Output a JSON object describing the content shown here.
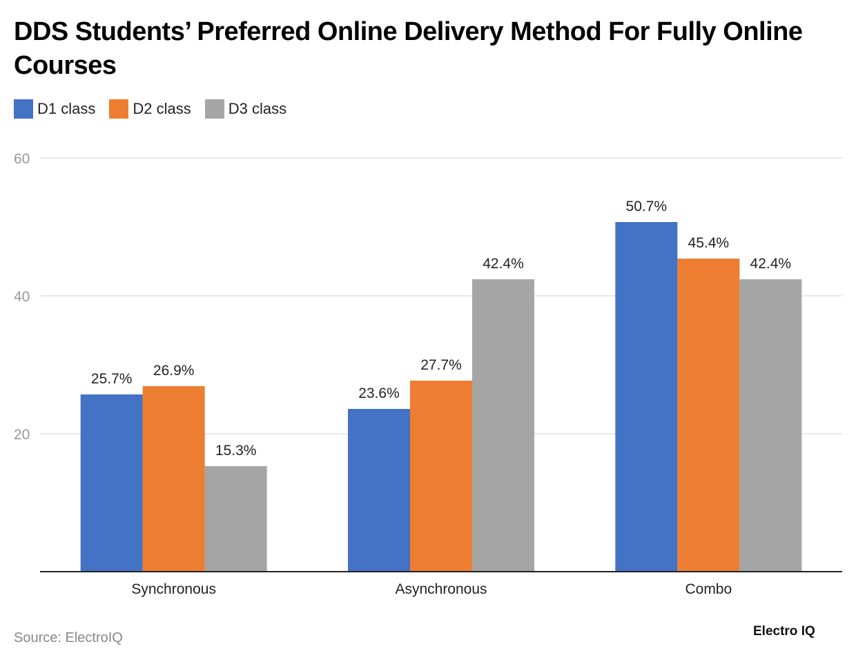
{
  "chart_data": {
    "type": "bar",
    "title": "DDS Students’ Preferred Online Delivery Method For Fully Online Courses",
    "categories": [
      "Synchronous",
      "Asynchronous",
      "Combo"
    ],
    "series": [
      {
        "name": "D1 class",
        "color": "#4472c4",
        "values": [
          25.7,
          23.6,
          50.7
        ],
        "labels": [
          "25.7%",
          "23.6%",
          "50.7%"
        ]
      },
      {
        "name": "D2 class",
        "color": "#ed7d31",
        "values": [
          26.9,
          27.7,
          45.4
        ],
        "labels": [
          "26.9%",
          "27.7%",
          "45.4%"
        ]
      },
      {
        "name": "D3 class",
        "color": "#a5a5a5",
        "values": [
          15.3,
          42.4,
          42.4
        ],
        "labels": [
          "15.3%",
          "42.4%",
          "42.4%"
        ]
      }
    ],
    "yticks": [
      "20",
      "40",
      "60"
    ],
    "ylim": [
      0,
      60
    ],
    "grid": true,
    "legend_position": "top-left"
  },
  "source": "Source: ElectroIQ",
  "logo": "Electro IQ"
}
